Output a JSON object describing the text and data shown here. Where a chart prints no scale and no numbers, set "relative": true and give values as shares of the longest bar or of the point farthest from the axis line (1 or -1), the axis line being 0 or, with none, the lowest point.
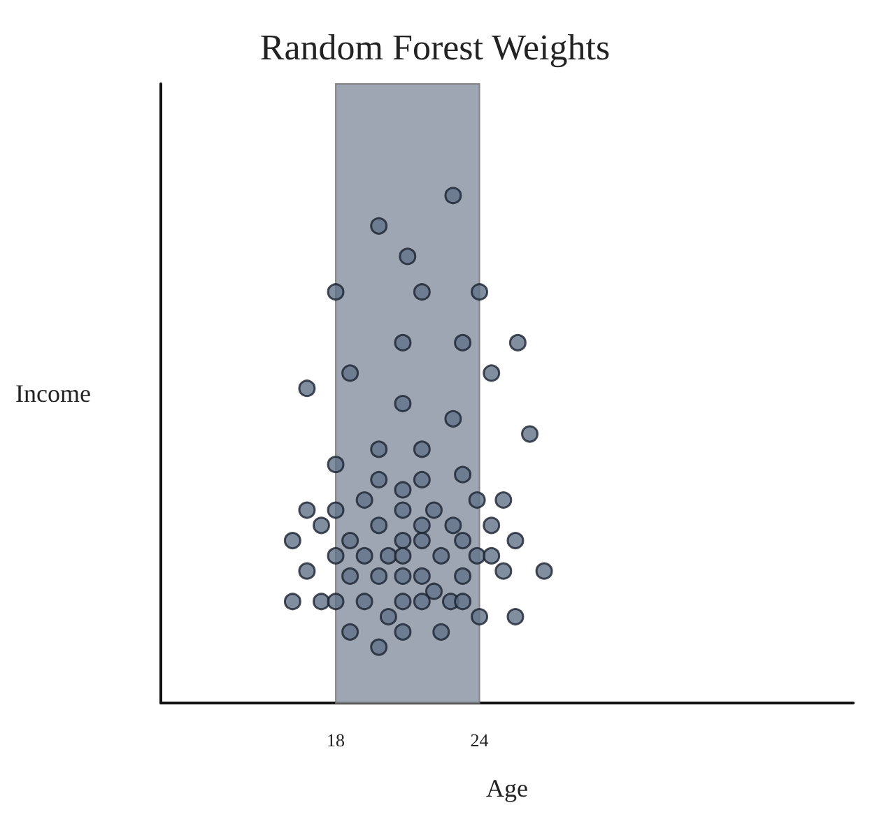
{
  "chart_data": {
    "type": "scatter",
    "title": "Random Forest Weights",
    "xlabel": "Age",
    "ylabel": "Income",
    "relative": true,
    "xlim": [
      10.7,
      39.6
    ],
    "xticks": [
      18,
      24
    ],
    "marker": "circle",
    "bands": [
      {
        "axis": "x",
        "from": 18,
        "to": 24,
        "color": "#8d96a6"
      }
    ],
    "series": [
      {
        "color": "#607287",
        "x": [
          22.9,
          19.8,
          21.0,
          18.0,
          21.6,
          24.0,
          20.8,
          23.3,
          25.6,
          18.6,
          24.5,
          16.8,
          20.8,
          22.9,
          26.1,
          18.0,
          19.8,
          21.6,
          19.8,
          21.6,
          23.3,
          20.8,
          23.9,
          25.0,
          19.2,
          16.8,
          18.0,
          20.8,
          22.1,
          17.4,
          19.8,
          21.6,
          22.9,
          24.5,
          16.2,
          18.6,
          20.8,
          21.6,
          23.3,
          25.5,
          18.0,
          19.2,
          20.2,
          22.4,
          23.9,
          24.5,
          20.8,
          16.8,
          25.0,
          26.7,
          18.6,
          19.8,
          20.8,
          21.6,
          23.3,
          22.1,
          16.2,
          17.4,
          18.0,
          19.2,
          20.8,
          21.6,
          22.8,
          23.3,
          20.2,
          24.0,
          25.5,
          18.6,
          20.8,
          22.4,
          19.8
        ],
        "values": [
          1.0,
          0.94,
          0.88,
          0.81,
          0.81,
          0.81,
          0.71,
          0.71,
          0.71,
          0.65,
          0.65,
          0.62,
          0.59,
          0.56,
          0.53,
          0.47,
          0.5,
          0.5,
          0.44,
          0.44,
          0.45,
          0.42,
          0.4,
          0.4,
          0.4,
          0.38,
          0.38,
          0.38,
          0.38,
          0.35,
          0.35,
          0.35,
          0.35,
          0.35,
          0.32,
          0.32,
          0.32,
          0.32,
          0.32,
          0.32,
          0.29,
          0.29,
          0.29,
          0.29,
          0.29,
          0.29,
          0.29,
          0.26,
          0.26,
          0.26,
          0.25,
          0.25,
          0.25,
          0.25,
          0.25,
          0.22,
          0.2,
          0.2,
          0.2,
          0.2,
          0.2,
          0.2,
          0.2,
          0.2,
          0.17,
          0.17,
          0.17,
          0.14,
          0.14,
          0.14,
          0.11
        ]
      }
    ]
  }
}
